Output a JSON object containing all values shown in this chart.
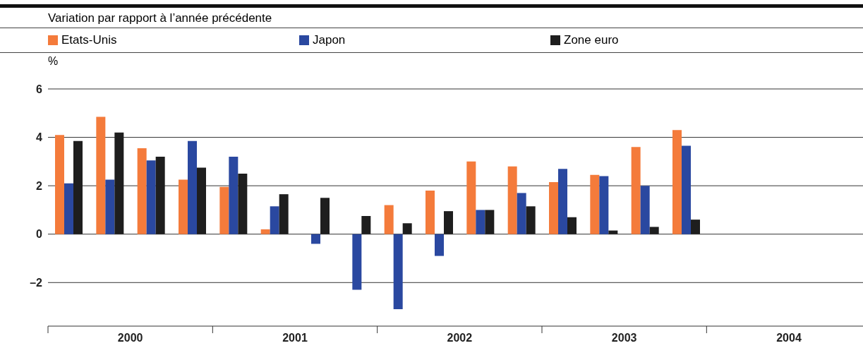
{
  "chart_data": {
    "type": "bar",
    "title": "Variation par rapport à l’année précédente",
    "ylabel": "%",
    "x": [
      2000.125,
      2000.375,
      2000.625,
      2000.875,
      2001.125,
      2001.375,
      2001.625,
      2001.875,
      2002.125,
      2002.375,
      2002.625,
      2002.875,
      2003.125,
      2003.375,
      2003.625,
      2003.875
    ],
    "series": [
      {
        "name": "Etats-Unis",
        "color": "#f47b3b",
        "values": [
          4.1,
          4.85,
          3.55,
          2.25,
          1.95,
          0.2,
          0.0,
          0.0,
          1.2,
          1.8,
          3.0,
          2.8,
          2.15,
          2.45,
          3.6,
          4.3
        ]
      },
      {
        "name": "Japon",
        "color": "#2a48a0",
        "values": [
          2.1,
          2.25,
          3.05,
          3.85,
          3.2,
          1.15,
          -0.4,
          -2.3,
          -3.1,
          -0.9,
          1.0,
          1.7,
          2.7,
          2.4,
          2.0,
          3.65
        ]
      },
      {
        "name": "Zone euro",
        "color": "#1e1e1e",
        "values": [
          3.85,
          4.2,
          3.2,
          2.75,
          2.5,
          1.65,
          1.5,
          0.75,
          0.45,
          0.95,
          1.0,
          1.15,
          0.7,
          0.15,
          0.3,
          0.6
        ]
      }
    ],
    "ylim": [
      -3.8,
      6
    ],
    "yticks": [
      {
        "value": -2,
        "label": "–2"
      },
      0,
      2,
      4,
      6
    ],
    "xlim": [
      2000,
      2004.95
    ],
    "xticks": [
      {
        "value": 2000,
        "label": null
      },
      {
        "value": 2000.5,
        "label": "2000"
      },
      {
        "value": 2001,
        "label": null
      },
      {
        "value": 2001.5,
        "label": "2001"
      },
      {
        "value": 2002,
        "label": null
      },
      {
        "value": 2002.5,
        "label": "2002"
      },
      {
        "value": 2003,
        "label": null
      },
      {
        "value": 2003.5,
        "label": "2003"
      },
      {
        "value": 2004,
        "label": null
      },
      {
        "value": 2004.5,
        "label": "2004"
      }
    ],
    "grid": "y",
    "legend": "top"
  }
}
